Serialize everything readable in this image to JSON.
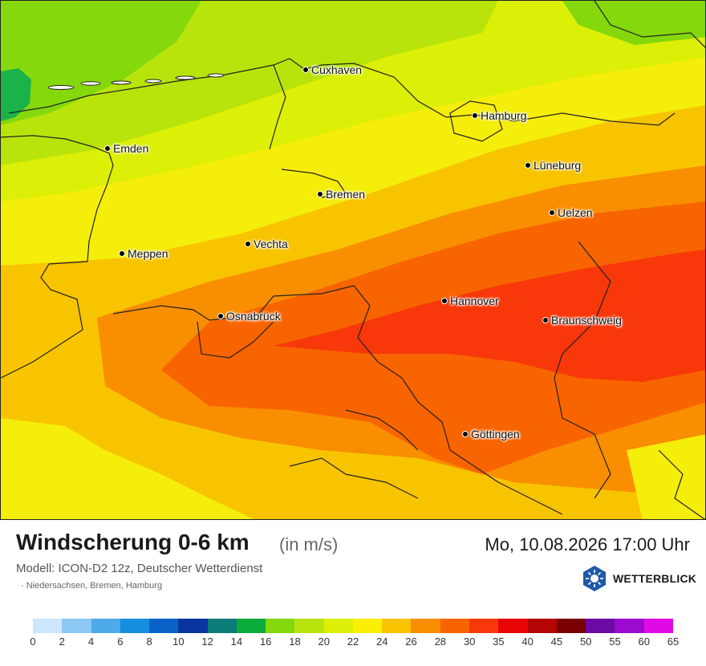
{
  "map": {
    "cities": [
      {
        "name": "Cuxhaven"
      },
      {
        "name": "Hamburg"
      },
      {
        "name": "Emden"
      },
      {
        "name": "Lüneburg"
      },
      {
        "name": "Bremen"
      },
      {
        "name": "Uelzen"
      },
      {
        "name": "Vechta"
      },
      {
        "name": "Meppen"
      },
      {
        "name": "Hannover"
      },
      {
        "name": "Osnabrück"
      },
      {
        "name": "Braunschweig"
      },
      {
        "name": "Göttingen"
      }
    ]
  },
  "footer": {
    "title": "Windscherung 0-6 km",
    "unit": "(in m/s)",
    "datetime": "Mo, 10.08.2026 17:00 Uhr",
    "model": "Modell: ICON-D2 12z, Deutscher Wetterdienst",
    "region": "· Niedersachsen, Bremen, Hamburg",
    "brand": "WETTERBLICK",
    "logo_icon": "sun-snowflake-hexagon-icon"
  },
  "legend": {
    "colors": [
      "#cde6fb",
      "#8cc8f2",
      "#4eaaea",
      "#168ee0",
      "#0a62c8",
      "#0a34a0",
      "#0c7c78",
      "#0aac3c",
      "#84d80c",
      "#b8e40c",
      "#dcef06",
      "#fbf005",
      "#f8c400",
      "#f88e00",
      "#f86400",
      "#f8380a",
      "#e80404",
      "#b40404",
      "#780000",
      "#6c0aa4",
      "#9c0ad0",
      "#e00ae6"
    ],
    "labels": [
      "0",
      "2",
      "4",
      "6",
      "8",
      "10",
      "12",
      "14",
      "16",
      "18",
      "20",
      "22",
      "24",
      "26",
      "28",
      "30",
      "35",
      "40",
      "45",
      "50",
      "55",
      "60",
      "65"
    ]
  }
}
